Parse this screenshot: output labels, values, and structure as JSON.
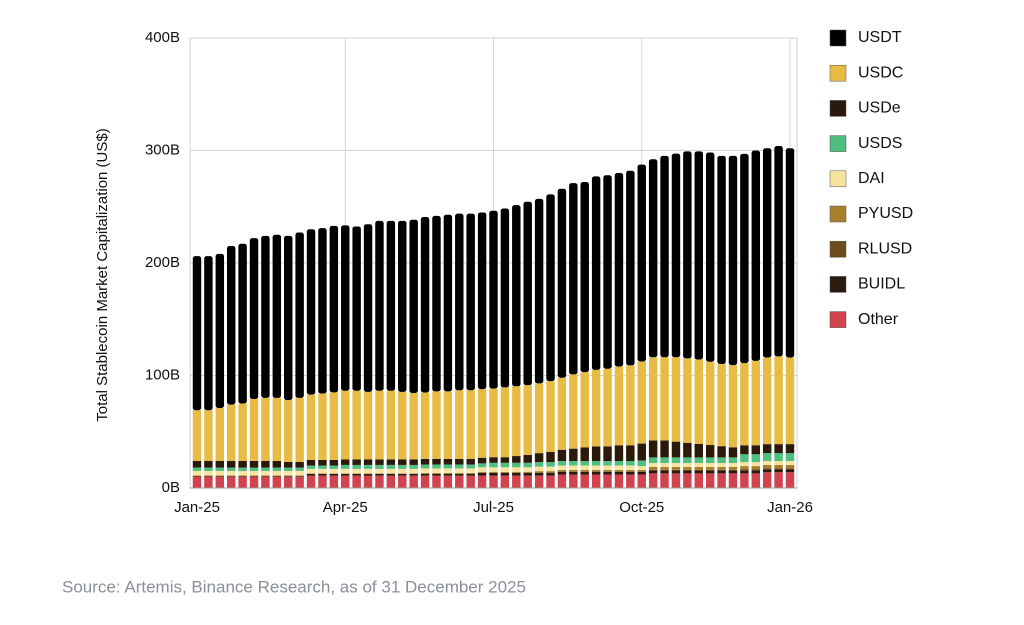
{
  "chart_data": {
    "type": "stacked-bar",
    "ylabel": "Total Stablecoin Market Capitalization (US$)",
    "source": "Source: Artemis, Binance Research, as of 31 December 2025",
    "categories": [
      "Jan-25",
      null,
      null,
      null,
      null,
      null,
      null,
      null,
      null,
      null,
      null,
      null,
      null,
      "Apr-25",
      null,
      null,
      null,
      null,
      null,
      null,
      null,
      null,
      null,
      null,
      null,
      null,
      "Jul-25",
      null,
      null,
      null,
      null,
      null,
      null,
      null,
      null,
      null,
      null,
      null,
      null,
      "Oct-25",
      null,
      null,
      null,
      null,
      null,
      null,
      null,
      null,
      null,
      null,
      null,
      null,
      "Jan-26"
    ],
    "ylim": [
      0,
      400
    ],
    "yticks": [
      {
        "value": 0,
        "label": "0B"
      },
      {
        "value": 100,
        "label": "100B"
      },
      {
        "value": 200,
        "label": "200B"
      },
      {
        "value": 300,
        "label": "300B"
      },
      {
        "value": 400,
        "label": "400B"
      }
    ],
    "grid": true,
    "legend": "right",
    "series": [
      {
        "name": "USDT",
        "color": "#000000",
        "values": [
          137,
          137,
          137,
          141,
          142,
          143,
          144,
          145,
          146,
          147,
          147,
          147,
          148,
          147,
          146,
          149,
          151,
          151,
          152,
          154,
          156,
          156,
          157,
          157,
          157,
          157,
          158,
          159,
          161,
          163,
          164,
          166,
          168,
          170,
          169,
          172,
          172,
          172,
          173,
          175,
          176,
          179,
          181,
          184,
          185,
          186,
          185,
          186,
          186,
          187,
          186,
          187,
          186
        ]
      },
      {
        "name": "USDC",
        "color": "#e8bb45",
        "values": [
          45,
          45,
          47,
          50,
          51,
          55,
          56,
          56,
          55,
          57,
          58,
          59,
          60,
          61,
          61,
          60,
          61,
          61,
          60,
          59,
          59,
          60,
          60,
          61,
          61,
          61,
          61,
          62,
          62,
          62,
          62,
          63,
          64,
          66,
          67,
          68,
          69,
          70,
          71,
          73,
          74,
          74,
          75,
          75,
          75,
          74,
          73,
          73,
          73,
          75,
          77,
          78,
          77
        ]
      },
      {
        "name": "USDe",
        "color": "#2b1a0c",
        "values": [
          6,
          6,
          6,
          6,
          6,
          6,
          6,
          6,
          5,
          5,
          5,
          5,
          5,
          5,
          5,
          5,
          5,
          5,
          5,
          5,
          5,
          5,
          5,
          5,
          5,
          5,
          5,
          5,
          6,
          7,
          8,
          9,
          10,
          11,
          12,
          13,
          13,
          14,
          14,
          15,
          15,
          15,
          14,
          13,
          12,
          11,
          10,
          9,
          8,
          8,
          8,
          8,
          8
        ]
      },
      {
        "name": "USDS",
        "color": "#4fbf7f",
        "values": [
          3,
          3,
          3,
          3,
          3,
          3,
          3,
          3,
          3,
          3,
          3,
          3,
          3,
          3.5,
          3.5,
          3.5,
          3.5,
          3.5,
          3.5,
          3.5,
          3.5,
          3.5,
          3.5,
          3.5,
          3.5,
          3.5,
          4,
          4,
          4,
          4,
          4,
          4,
          4,
          4,
          4,
          4,
          4,
          4,
          4,
          5,
          5,
          5,
          5,
          5,
          5,
          5,
          5,
          5,
          7,
          7,
          7,
          7,
          7
        ]
      },
      {
        "name": "DAI",
        "color": "#f8e4a0",
        "values": [
          4,
          4,
          4,
          4,
          4,
          4,
          4,
          4,
          4,
          4,
          4,
          4,
          4,
          4,
          4,
          4,
          4,
          4,
          4,
          4,
          4,
          4,
          4,
          4,
          4,
          4,
          4,
          4,
          4,
          4,
          4,
          4,
          4,
          4,
          4,
          4,
          4,
          4,
          4,
          3.5,
          3.5,
          3.5,
          3.5,
          3.5,
          3.5,
          3.5,
          3.5,
          3.5,
          3.5,
          3.5,
          3.5,
          3.5,
          3.5
        ]
      },
      {
        "name": "PYUSD",
        "color": "#a8802c",
        "values": [
          0.5,
          0.5,
          0.5,
          0.5,
          0.5,
          0.5,
          0.5,
          0.5,
          0.5,
          0.5,
          0.5,
          0.5,
          0.5,
          0.5,
          0.5,
          0.5,
          0.5,
          0.5,
          0.5,
          0.5,
          0.8,
          0.8,
          0.8,
          0.8,
          0.8,
          0.8,
          0.8,
          0.8,
          0.8,
          0.8,
          1.2,
          1.2,
          1.2,
          1.2,
          1.2,
          1.2,
          1.2,
          1.2,
          1.2,
          1.2,
          2.5,
          2.5,
          2.5,
          2.5,
          2.5,
          2.5,
          2.5,
          2.5,
          3,
          3,
          3,
          3,
          3
        ]
      },
      {
        "name": "RLUSD",
        "color": "#6b4c1a",
        "values": [
          0,
          0,
          0,
          0,
          0,
          0,
          0,
          0,
          0,
          0,
          0,
          0,
          0,
          0,
          0,
          0,
          0,
          0,
          0,
          0,
          0.1,
          0.1,
          0.1,
          0.1,
          0.1,
          0.1,
          0.1,
          0.1,
          0.1,
          0.1,
          0.3,
          0.3,
          0.3,
          0.3,
          0.3,
          0.3,
          0.3,
          0.3,
          0.3,
          0.3,
          0.7,
          0.7,
          0.7,
          0.7,
          0.7,
          0.7,
          0.7,
          0.7,
          1,
          1,
          1,
          1,
          1
        ]
      },
      {
        "name": "BUIDL",
        "color": "#2a1a10",
        "values": [
          0.6,
          0.6,
          0.6,
          0.6,
          0.6,
          0.6,
          0.6,
          0.6,
          0.6,
          0.6,
          1.5,
          1.5,
          1.5,
          1.5,
          1.5,
          1.5,
          1.5,
          1.5,
          1.5,
          1.5,
          1.5,
          1.5,
          1.5,
          1.5,
          1.5,
          2.5,
          2.5,
          2.5,
          2.5,
          2.5,
          2.5,
          2.5,
          2.5,
          2.5,
          2.5,
          2.5,
          2.5,
          2.5,
          2.5,
          2.5,
          2.5,
          2.5,
          2.5,
          2.5,
          2.5,
          2.5,
          2.5,
          2.5,
          2.5,
          2.5,
          2.5,
          2.5,
          2.5
        ]
      },
      {
        "name": "Other",
        "color": "#d0434f",
        "values": [
          10,
          10,
          10,
          10,
          10,
          10,
          10,
          10,
          10,
          10,
          11,
          11,
          11,
          11,
          11,
          11,
          11,
          11,
          11,
          11,
          11,
          11,
          11,
          11,
          11,
          11,
          11,
          11,
          11,
          11,
          11,
          11,
          12,
          12,
          12,
          12,
          12,
          12,
          12,
          12,
          13,
          13,
          13,
          13,
          13,
          13,
          13,
          13,
          13,
          13,
          14,
          14,
          14
        ]
      }
    ]
  }
}
